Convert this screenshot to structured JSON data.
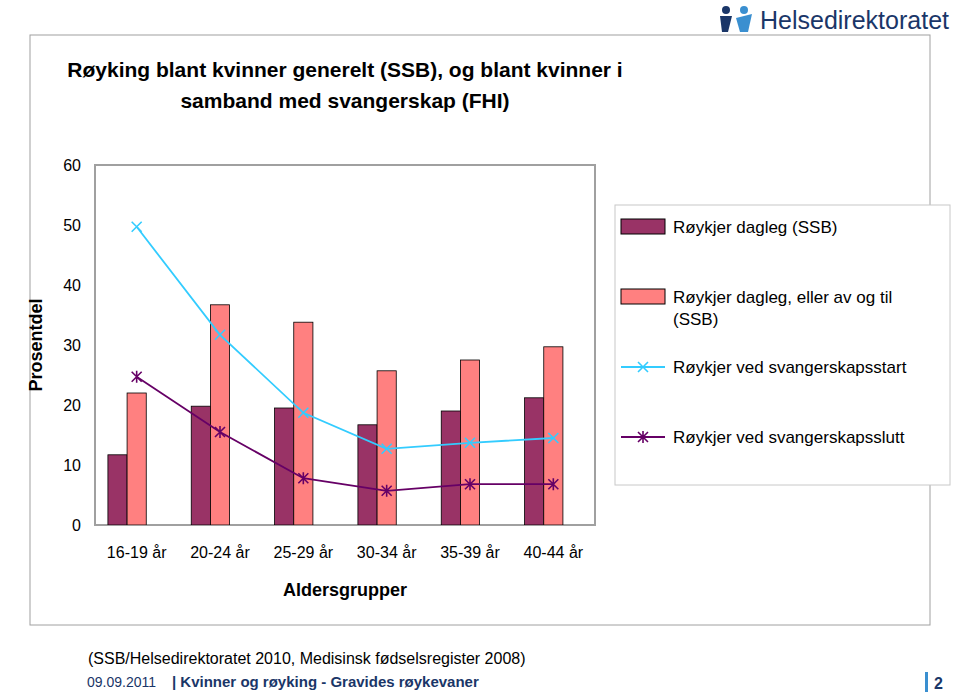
{
  "chart_data": {
    "type": "bar",
    "title": [
      "Røyking blant kvinner generelt (SSB), og blant kvinner i",
      "samband med svangerskap (FHI)"
    ],
    "x_label": "Aldersgrupper",
    "y_label": "Prosentdel",
    "categories": [
      "16-19 år",
      "20-24 år",
      "25-29 år",
      "30-34 år",
      "35-39 år",
      "40-44 år"
    ],
    "series": [
      {
        "name": "Røykjer dagleg (SSB)",
        "type": "bar",
        "color": "#993366",
        "values": [
          11.7,
          19.8,
          19.5,
          16.7,
          19.0,
          21.2
        ]
      },
      {
        "name": "Røykjer dagleg, eller av og til (SSB)",
        "type": "bar",
        "color": "#ff8080",
        "values": [
          22.0,
          36.7,
          33.8,
          25.7,
          27.5,
          29.7
        ]
      },
      {
        "name": "Røykjer ved svangerskapsstart",
        "type": "line",
        "color": "#33ccff",
        "marker": "x",
        "values": [
          49.7,
          31.7,
          18.7,
          12.7,
          13.7,
          14.5
        ]
      },
      {
        "name": "Røykjer ved svangerskapsslutt",
        "type": "line",
        "color": "#660066",
        "marker": "asterisk",
        "values": [
          24.7,
          15.5,
          7.8,
          5.7,
          6.8,
          6.8
        ]
      }
    ],
    "ylim": [
      0,
      60
    ],
    "yticks": [
      0,
      10,
      20,
      30,
      40,
      50,
      60
    ],
    "grid": false,
    "legend": "right"
  },
  "page": {
    "logo": "Helsedirektoratet",
    "source": "(SSB/Helsedirektoratet 2010, Medisinsk fødselsregister 2008)",
    "date": "09.09.2011",
    "footer_title": "| Kvinner og røyking - Gravides røykevaner",
    "page_number": 2
  }
}
